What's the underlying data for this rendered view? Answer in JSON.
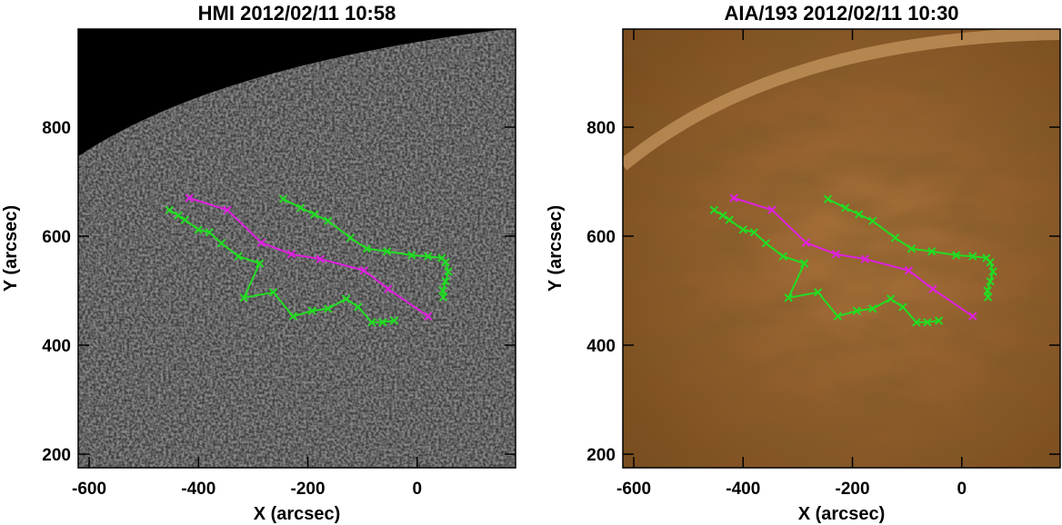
{
  "chart_data": [
    {
      "type": "line",
      "title": "HMI 2012/02/11 10:58",
      "xlabel": "X (arcsec)",
      "ylabel": "Y (arcsec)",
      "background": "magnetogram",
      "xlim": [
        -620,
        180
      ],
      "ylim": [
        175,
        980
      ],
      "xticks": [
        -600,
        -400,
        -200,
        0
      ],
      "yticks": [
        200,
        400,
        600,
        800
      ],
      "series": [
        {
          "color": "#e020e0",
          "x": [
            -417,
            -347,
            -285,
            -230,
            -177,
            -97,
            -53,
            20
          ],
          "values": [
            670,
            648,
            588,
            567,
            558,
            537,
            503,
            453
          ]
        },
        {
          "color": "#22dd22",
          "x": [
            -245,
            -213,
            -188,
            -163,
            -122,
            -92,
            -55,
            -10,
            20,
            45,
            52,
            57,
            52,
            47,
            48
          ],
          "values": [
            668,
            652,
            640,
            628,
            597,
            577,
            572,
            565,
            563,
            560,
            552,
            535,
            517,
            500,
            488
          ]
        },
        {
          "color": "#22dd22",
          "x": [
            -453,
            -437,
            -425,
            -400,
            -380,
            -358,
            -327,
            -288,
            -317,
            -263,
            -227,
            -192,
            -163,
            -130,
            -108,
            -83,
            -63,
            -42
          ],
          "values": [
            648,
            638,
            630,
            612,
            607,
            587,
            563,
            550,
            487,
            497,
            453,
            463,
            467,
            485,
            470,
            442,
            442,
            445
          ]
        }
      ]
    },
    {
      "type": "line",
      "title": "AIA/193 2012/02/11 10:30",
      "xlabel": "X (arcsec)",
      "ylabel": "Y (arcsec)",
      "background": "euv",
      "xlim": [
        -620,
        180
      ],
      "ylim": [
        175,
        980
      ],
      "xticks": [
        -600,
        -400,
        -200,
        0
      ],
      "yticks": [
        200,
        400,
        600,
        800
      ],
      "series": [
        {
          "color": "#e020e0",
          "x": [
            -417,
            -347,
            -285,
            -230,
            -177,
            -97,
            -53,
            20
          ],
          "values": [
            670,
            648,
            588,
            567,
            558,
            537,
            503,
            453
          ]
        },
        {
          "color": "#22dd22",
          "x": [
            -245,
            -213,
            -188,
            -163,
            -122,
            -92,
            -55,
            -10,
            20,
            45,
            52,
            57,
            52,
            47,
            48
          ],
          "values": [
            668,
            652,
            640,
            628,
            597,
            577,
            572,
            565,
            563,
            560,
            552,
            535,
            517,
            500,
            488
          ]
        },
        {
          "color": "#22dd22",
          "x": [
            -453,
            -437,
            -425,
            -400,
            -380,
            -358,
            -327,
            -288,
            -317,
            -263,
            -227,
            -192,
            -163,
            -130,
            -108,
            -83,
            -63,
            -42
          ],
          "values": [
            648,
            638,
            630,
            612,
            607,
            587,
            563,
            550,
            487,
            497,
            453,
            463,
            467,
            485,
            470,
            442,
            442,
            445
          ]
        }
      ]
    }
  ]
}
